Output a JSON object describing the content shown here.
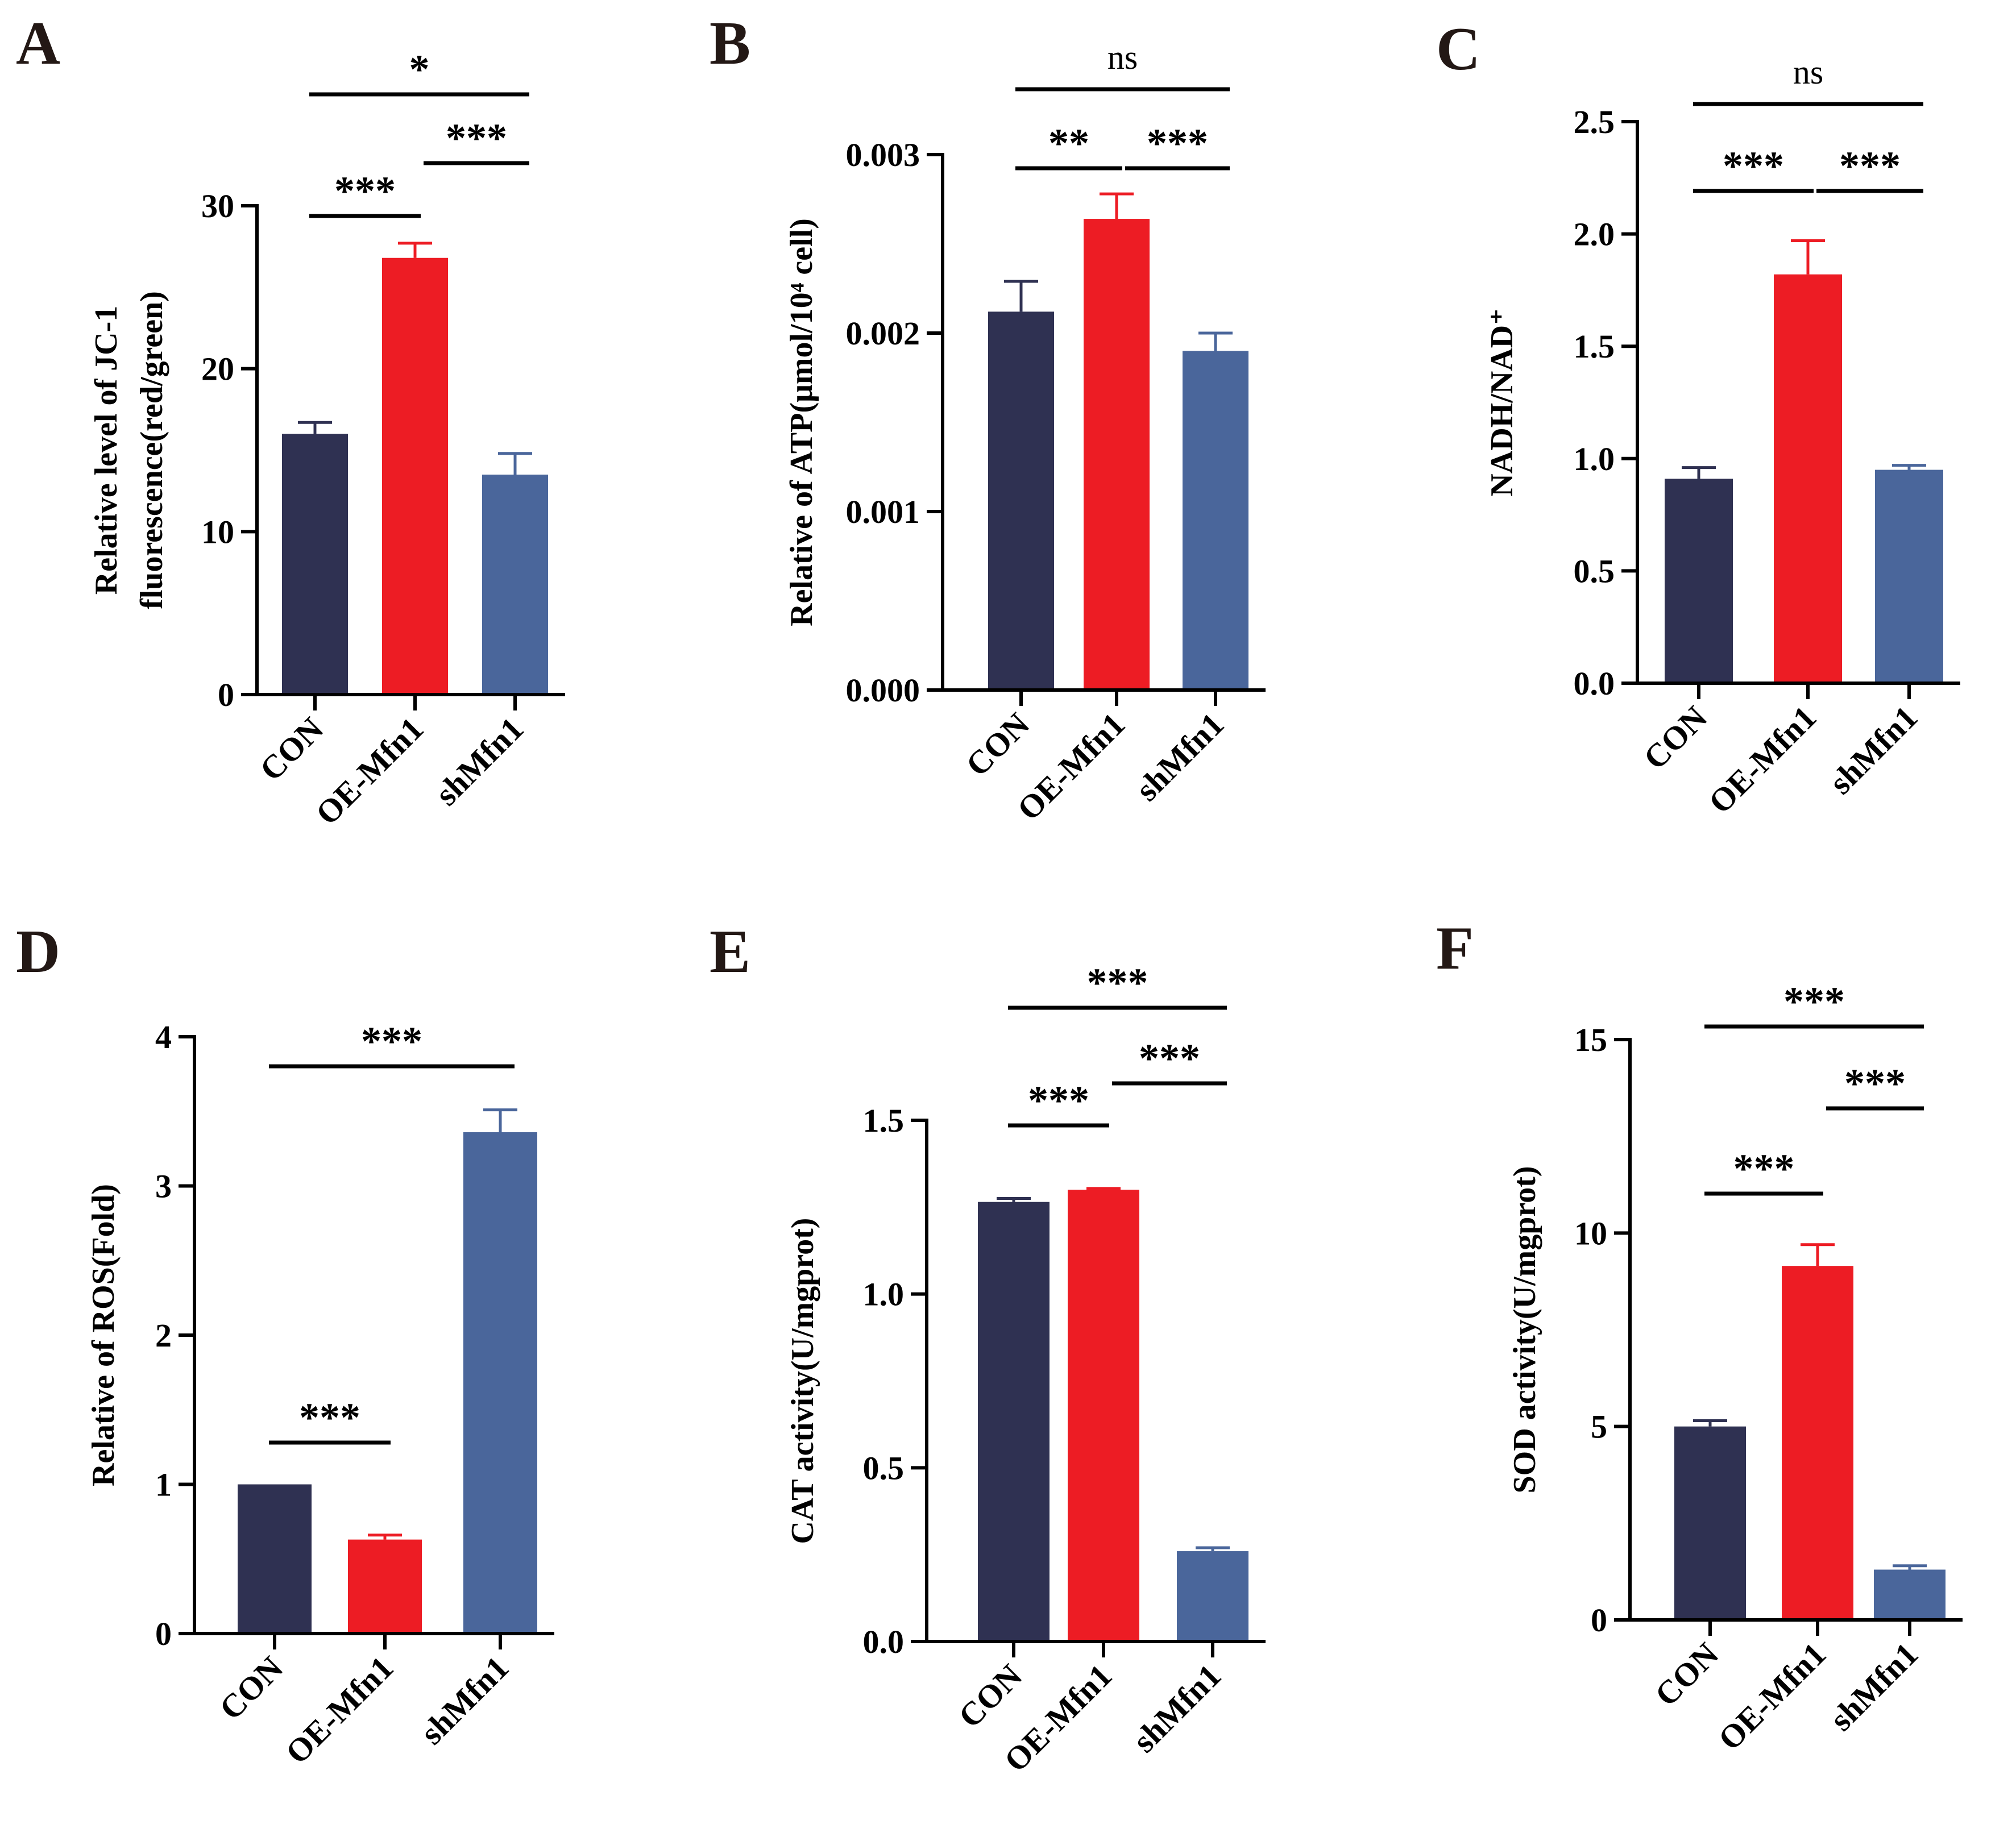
{
  "figure": {
    "colors": {
      "CON": "#2f3152",
      "OE-Mfn1": "#ed1c24",
      "shMfn1": "#4a669b",
      "axis": "#000000",
      "panel_letter": "#231815"
    }
  },
  "chart_data": [
    {
      "panel": "A",
      "type": "bar",
      "ylabel": "Relative level of JC-1 fluorescence(red/green)",
      "ylabel_lines": [
        "Relative level of JC-1",
        "fluorescence(red/green)"
      ],
      "categories": [
        "CON",
        "OE-Mfn1",
        "shMfn1"
      ],
      "values": [
        16.0,
        26.8,
        13.5
      ],
      "errors": [
        0.7,
        0.9,
        1.3
      ],
      "ylim": [
        0,
        30
      ],
      "yticks": [
        0,
        10,
        20,
        30
      ],
      "ytick_labels": [
        "0",
        "10",
        "20",
        "30"
      ],
      "significance": [
        {
          "from": 0,
          "to": 1,
          "label": "***",
          "level": 0
        },
        {
          "from": 1,
          "to": 2,
          "label": "***",
          "level": 1
        },
        {
          "from": 0,
          "to": 2,
          "label": "*",
          "level": 2
        }
      ]
    },
    {
      "panel": "B",
      "type": "bar",
      "ylabel": "Relative of ATP(μmol/10⁴ cell)",
      "ylabel_lines": [
        "Relative of ATP(μmol/10⁴ cell)"
      ],
      "categories": [
        "CON",
        "OE-Mfn1",
        "shMfn1"
      ],
      "values": [
        0.00212,
        0.00264,
        0.0019
      ],
      "errors": [
        0.00017,
        0.00014,
        0.0001
      ],
      "ylim": [
        0,
        0.003
      ],
      "yticks": [
        0,
        0.001,
        0.002,
        0.003
      ],
      "ytick_labels": [
        "0.000",
        "0.001",
        "0.002",
        "0.003"
      ],
      "significance": [
        {
          "from": 0,
          "to": 1,
          "label": "**",
          "level": 0
        },
        {
          "from": 1,
          "to": 2,
          "label": "***",
          "level": 0
        },
        {
          "from": 0,
          "to": 2,
          "label": "ns",
          "level": 1
        }
      ]
    },
    {
      "panel": "C",
      "type": "bar",
      "ylabel": "NADH/NAD⁺",
      "ylabel_lines": [
        "NADH/NAD⁺"
      ],
      "categories": [
        "CON",
        "OE-Mfn1",
        "shMfn1"
      ],
      "values": [
        0.91,
        1.82,
        0.95
      ],
      "errors": [
        0.05,
        0.15,
        0.02
      ],
      "ylim": [
        0,
        2.5
      ],
      "yticks": [
        0,
        0.5,
        1.0,
        1.5,
        2.0,
        2.5
      ],
      "ytick_labels": [
        "0.0",
        "0.5",
        "1.0",
        "1.5",
        "2.0",
        "2.5"
      ],
      "significance": [
        {
          "from": 0,
          "to": 1,
          "label": "***",
          "level": 0
        },
        {
          "from": 1,
          "to": 2,
          "label": "***",
          "level": 0
        },
        {
          "from": 0,
          "to": 2,
          "label": "ns",
          "level": 1
        }
      ]
    },
    {
      "panel": "D",
      "type": "bar",
      "ylabel": "Relative of ROS(Fold)",
      "ylabel_lines": [
        "Relative of ROS(Fold)"
      ],
      "categories": [
        "CON",
        "OE-Mfn1",
        "shMfn1"
      ],
      "values": [
        1.0,
        0.63,
        3.36
      ],
      "errors": [
        0.0,
        0.03,
        0.15
      ],
      "ylim": [
        0,
        4
      ],
      "yticks": [
        0,
        1,
        2,
        3,
        4
      ],
      "ytick_labels": [
        "0",
        "1",
        "2",
        "3",
        "4"
      ],
      "significance": [
        {
          "from": 0,
          "to": 1,
          "label": "***",
          "level": 0
        },
        {
          "from": 0,
          "to": 2,
          "label": "***",
          "level": 2
        }
      ]
    },
    {
      "panel": "E",
      "type": "bar",
      "ylabel": "CAT activity(U/mgprot)",
      "ylabel_lines": [
        "CAT activity(U/mgprot)"
      ],
      "categories": [
        "CON",
        "OE-Mfn1",
        "shMfn1"
      ],
      "values": [
        1.265,
        1.3,
        0.26
      ],
      "errors": [
        0.01,
        0.004,
        0.01
      ],
      "ylim": [
        0,
        1.5
      ],
      "yticks": [
        0,
        0.5,
        1.0,
        1.5
      ],
      "ytick_labels": [
        "0.0",
        "0.5",
        "1.0",
        "1.5"
      ],
      "significance": [
        {
          "from": 0,
          "to": 1,
          "label": "***",
          "level": 0
        },
        {
          "from": 1,
          "to": 2,
          "label": "***",
          "level": 1
        },
        {
          "from": 0,
          "to": 2,
          "label": "***",
          "level": 2
        }
      ]
    },
    {
      "panel": "F",
      "type": "bar",
      "ylabel": "SOD activity(U/mgprot)",
      "ylabel_lines": [
        "SOD activity(U/mgprot)"
      ],
      "categories": [
        "CON",
        "OE-Mfn1",
        "shMfn1"
      ],
      "values": [
        5.0,
        9.15,
        1.3
      ],
      "errors": [
        0.15,
        0.55,
        0.1
      ],
      "ylim": [
        0,
        15
      ],
      "yticks": [
        0,
        5,
        10,
        15
      ],
      "ytick_labels": [
        "0",
        "5",
        "10",
        "15"
      ],
      "significance": [
        {
          "from": 0,
          "to": 1,
          "label": "***",
          "level": 0
        },
        {
          "from": 1,
          "to": 2,
          "label": "***",
          "level": 1
        },
        {
          "from": 0,
          "to": 2,
          "label": "***",
          "level": 2
        }
      ]
    }
  ]
}
